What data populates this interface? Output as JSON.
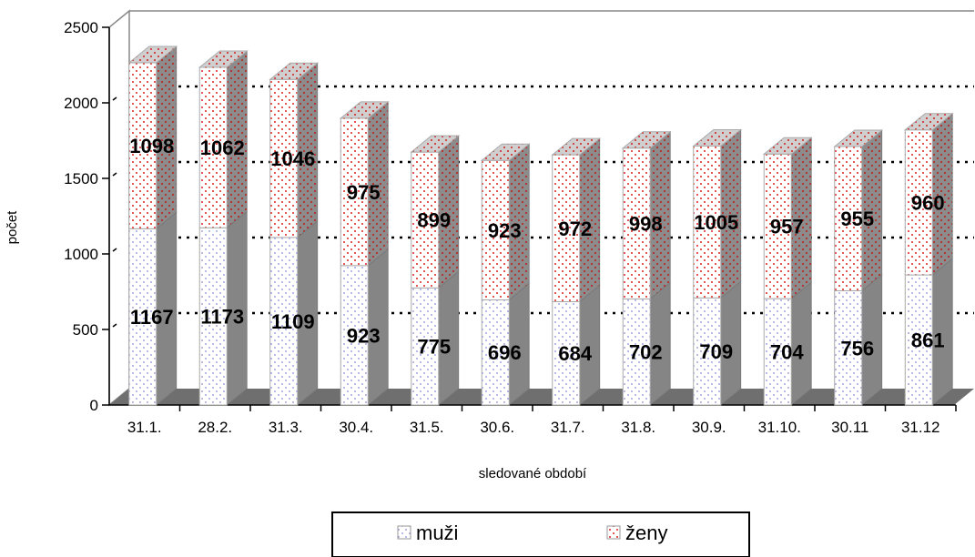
{
  "chart_data": {
    "type": "bar",
    "stacked": true,
    "style": "3d-columns",
    "categories": [
      "31.1.",
      "28.2.",
      "31.3.",
      "30.4.",
      "31.5.",
      "30.6.",
      "31.7.",
      "31.8.",
      "30.9.",
      "31.10.",
      "30.11",
      "31.12"
    ],
    "series": [
      {
        "name": "muži",
        "values": [
          1167,
          1173,
          1109,
          923,
          775,
          696,
          684,
          702,
          709,
          704,
          756,
          861
        ],
        "color": "#ffffff",
        "dot_color": "#8a8ad8"
      },
      {
        "name": "ženy",
        "values": [
          1098,
          1062,
          1046,
          975,
          899,
          923,
          972,
          998,
          1005,
          957,
          955,
          960
        ],
        "color": "#ffffff",
        "dot_color": "#e02020"
      }
    ],
    "xlabel": "sledované období",
    "ylabel": "počet",
    "ylim": [
      0,
      2500
    ],
    "yticks": [
      "0",
      "500",
      "1000",
      "1500",
      "2000",
      "2500"
    ],
    "grid": "dotted-horizontal",
    "legend_position": "bottom-center"
  }
}
